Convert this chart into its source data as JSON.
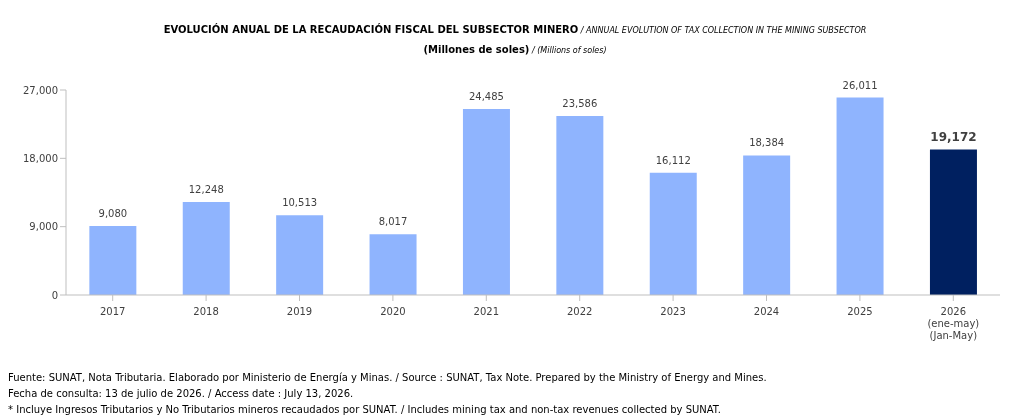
{
  "chart_data": {
    "type": "bar",
    "title": "EVOLUCIÓN ANUAL DE LA RECAUDACIÓN FISCAL DEL SUBSECTOR MINERO / ANNUAL EVOLUTION OF TAX COLLECTION IN THE MINING SUBSECTOR",
    "subtitle": "(Millones de soles) / (Millions of soles)",
    "categories": [
      "2017",
      "2018",
      "2019",
      "2020",
      "2021",
      "2022",
      "2023",
      "2024",
      "2025",
      "2026\n(ene-may)\n(Jan-May)"
    ],
    "values": [
      9080,
      12248,
      10513,
      8017,
      24485,
      23586,
      16112,
      18384,
      26011,
      19172
    ],
    "colors": [
      "#8fb4fe",
      "#8fb4fe",
      "#8fb4fe",
      "#8fb4fe",
      "#8fb4fe",
      "#8fb4fe",
      "#8fb4fe",
      "#8fb4fe",
      "#8fb4fe",
      "#002060"
    ],
    "ylim": [
      0,
      27000
    ],
    "yticks": [
      {
        "value": 0,
        "label": "0"
      },
      {
        "value": 9000,
        "label": "9,000"
      },
      {
        "value": 18000,
        "label": "18,000"
      },
      {
        "value": 27000,
        "label": "27,000"
      }
    ],
    "value_labels": [
      "9,080",
      "12,248",
      "10,513",
      "8,017",
      "24,485",
      "23,586",
      "16,112",
      "18,384",
      "26,011",
      "19,172"
    ],
    "grid": false,
    "legend": false,
    "annotations": [
      "Fuente: SUNAT, Nota Tributaria. Elaborado por Ministerio de Energía y Minas. / Source : SUNAT, Tax Note. Prepared by the Ministry of Energy and Mines.",
      "Fecha de consulta: 13 de julio de 2026. / Access date : July 13, 2026.",
      "* Incluye Ingresos Tributarios y No Tributarios mineros recaudados por SUNAT. / Includes mining tax and non-tax revenues collected by SUNAT."
    ]
  }
}
